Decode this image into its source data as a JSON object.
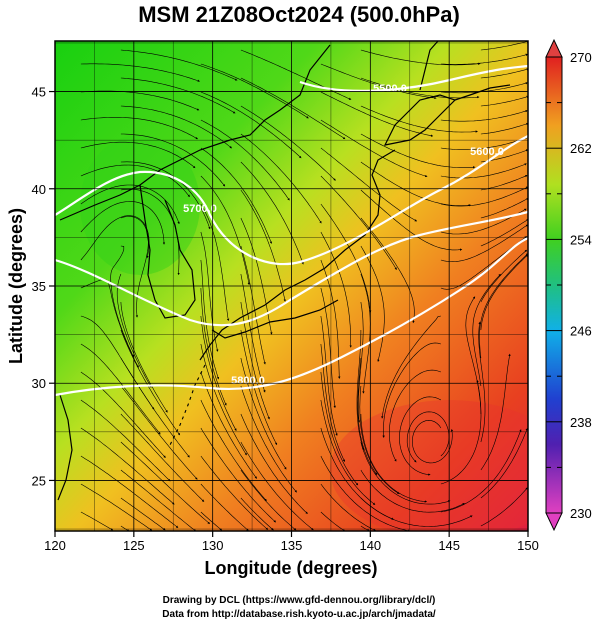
{
  "map": {
    "title": "MSM 21Z08Oct2024 (500.0hPa)",
    "xlabel": "Longitude (degrees)",
    "ylabel": "Latitude  (degrees)",
    "lon_range": [
      120,
      150
    ],
    "lat_range": [
      22.4,
      47.6
    ],
    "lon_ticks": [
      "120",
      "125",
      "130",
      "135",
      "140",
      "145",
      "150"
    ],
    "lat_ticks": [
      "25",
      "30",
      "35",
      "40",
      "45"
    ],
    "grid": true,
    "colorbar": {
      "min": 230,
      "max": 270,
      "tick_labels": [
        "230",
        "238",
        "246",
        "254",
        "262",
        "270"
      ],
      "colors": [
        "#e040c0",
        "#3040d0",
        "#10a8e8",
        "#20c080",
        "#60e020",
        "#d8e820",
        "#f08020",
        "#e02020"
      ]
    },
    "contours": [
      {
        "label": "5500.0"
      },
      {
        "label": "5600.0"
      },
      {
        "label": "5700.0"
      },
      {
        "label": "5800.0"
      }
    ],
    "credits": [
      "Drawing by DCL (https://www.gfd-dennou.org/library/dcl/)",
      "Data from http://database.rish.kyoto-u.ac.jp/arch/jmadata/"
    ]
  }
}
